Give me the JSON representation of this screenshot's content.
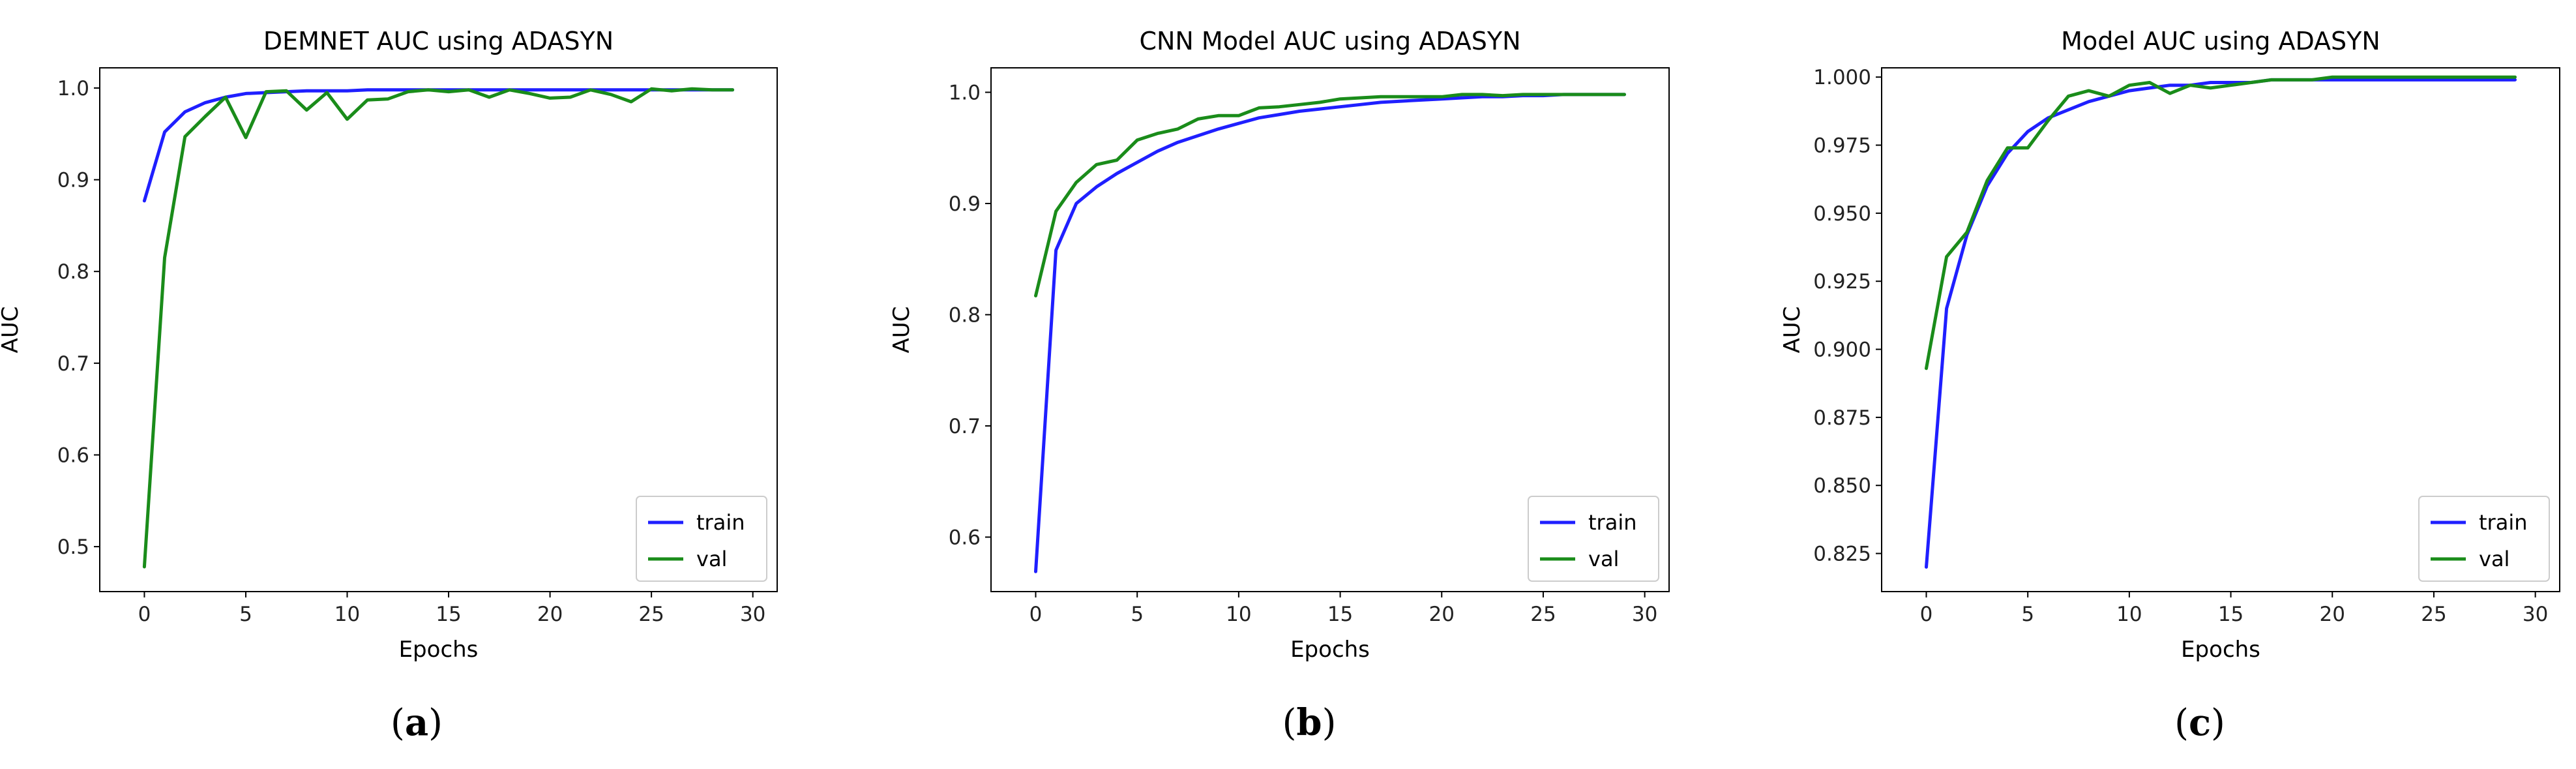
{
  "colors": {
    "train": "#1f1fff",
    "val": "#1a8c1a"
  },
  "chart_data": [
    {
      "type": "line",
      "title": "DEMNET AUC using ADASYN",
      "xlabel": "Epochs",
      "ylabel": "AUC",
      "xlim": [
        -2.2,
        31.2
      ],
      "ylim": [
        0.451,
        1.022
      ],
      "xticks": [
        0,
        5,
        10,
        15,
        20,
        25,
        30
      ],
      "yticks": [
        0.5,
        0.6,
        0.7,
        0.8,
        0.9,
        1.0
      ],
      "ytick_labels": [
        "0.5",
        "0.6",
        "0.7",
        "0.8",
        "0.9",
        "1.0"
      ],
      "legend": "lower-right",
      "caption_letter": "a",
      "x": [
        0,
        1,
        2,
        3,
        4,
        5,
        6,
        7,
        8,
        9,
        10,
        11,
        12,
        13,
        14,
        15,
        16,
        17,
        18,
        19,
        20,
        21,
        22,
        23,
        24,
        25,
        26,
        27,
        28,
        29
      ],
      "series": [
        {
          "name": "train",
          "values": [
            0.877,
            0.952,
            0.974,
            0.984,
            0.99,
            0.994,
            0.995,
            0.996,
            0.997,
            0.997,
            0.997,
            0.998,
            0.998,
            0.998,
            0.998,
            0.998,
            0.998,
            0.998,
            0.998,
            0.998,
            0.998,
            0.998,
            0.998,
            0.998,
            0.998,
            0.998,
            0.998,
            0.998,
            0.998,
            0.998
          ]
        },
        {
          "name": "val",
          "values": [
            0.478,
            0.815,
            0.947,
            0.969,
            0.99,
            0.946,
            0.996,
            0.997,
            0.976,
            0.995,
            0.966,
            0.987,
            0.988,
            0.996,
            0.998,
            0.996,
            0.998,
            0.99,
            0.998,
            0.994,
            0.989,
            0.99,
            0.998,
            0.993,
            0.985,
            0.999,
            0.997,
            0.999,
            0.998,
            0.998
          ]
        }
      ]
    },
    {
      "type": "line",
      "title": "CNN Model AUC using ADASYN",
      "xlabel": "Epochs",
      "ylabel": "AUC",
      "xlim": [
        -2.2,
        31.2
      ],
      "ylim": [
        0.551,
        1.022
      ],
      "xticks": [
        0,
        5,
        10,
        15,
        20,
        25,
        30
      ],
      "yticks": [
        0.6,
        0.7,
        0.8,
        0.9,
        1.0
      ],
      "ytick_labels": [
        "0.6",
        "0.7",
        "0.8",
        "0.9",
        "1.0"
      ],
      "legend": "lower-right",
      "caption_letter": "b",
      "x": [
        0,
        1,
        2,
        3,
        4,
        5,
        6,
        7,
        8,
        9,
        10,
        11,
        12,
        13,
        14,
        15,
        16,
        17,
        18,
        19,
        20,
        21,
        22,
        23,
        24,
        25,
        26,
        27,
        28,
        29
      ],
      "series": [
        {
          "name": "train",
          "values": [
            0.569,
            0.858,
            0.9,
            0.915,
            0.927,
            0.937,
            0.947,
            0.955,
            0.961,
            0.967,
            0.972,
            0.977,
            0.98,
            0.983,
            0.985,
            0.987,
            0.989,
            0.991,
            0.992,
            0.993,
            0.994,
            0.995,
            0.996,
            0.996,
            0.997,
            0.997,
            0.998,
            0.998,
            0.998,
            0.998
          ]
        },
        {
          "name": "val",
          "values": [
            0.817,
            0.893,
            0.919,
            0.935,
            0.939,
            0.957,
            0.963,
            0.967,
            0.976,
            0.979,
            0.979,
            0.986,
            0.987,
            0.989,
            0.991,
            0.994,
            0.995,
            0.996,
            0.996,
            0.996,
            0.996,
            0.998,
            0.998,
            0.997,
            0.998,
            0.998,
            0.998,
            0.998,
            0.998,
            0.998
          ]
        }
      ]
    },
    {
      "type": "line",
      "title": "Model AUC using ADASYN",
      "xlabel": "Epochs",
      "ylabel": "AUC",
      "xlim": [
        -2.2,
        31.2
      ],
      "ylim": [
        0.811,
        1.0034
      ],
      "xticks": [
        0,
        5,
        10,
        15,
        20,
        25,
        30
      ],
      "yticks": [
        0.825,
        0.85,
        0.875,
        0.9,
        0.925,
        0.95,
        0.975,
        1.0
      ],
      "ytick_labels": [
        "0.825",
        "0.850",
        "0.875",
        "0.900",
        "0.925",
        "0.950",
        "0.975",
        "1.000"
      ],
      "legend": "lower-right",
      "caption_letter": "c",
      "x": [
        0,
        1,
        2,
        3,
        4,
        5,
        6,
        7,
        8,
        9,
        10,
        11,
        12,
        13,
        14,
        15,
        16,
        17,
        18,
        19,
        20,
        21,
        22,
        23,
        24,
        25,
        26,
        27,
        28,
        29
      ],
      "series": [
        {
          "name": "train",
          "values": [
            0.82,
            0.915,
            0.942,
            0.96,
            0.972,
            0.98,
            0.985,
            0.988,
            0.991,
            0.993,
            0.995,
            0.996,
            0.997,
            0.997,
            0.998,
            0.998,
            0.998,
            0.999,
            0.999,
            0.999,
            0.999,
            0.999,
            0.999,
            0.999,
            0.999,
            0.999,
            0.999,
            0.999,
            0.999,
            0.999
          ]
        },
        {
          "name": "val",
          "values": [
            0.893,
            0.934,
            0.943,
            0.962,
            0.974,
            0.974,
            0.984,
            0.993,
            0.995,
            0.993,
            0.997,
            0.998,
            0.994,
            0.997,
            0.996,
            0.997,
            0.998,
            0.999,
            0.999,
            0.999,
            1.0,
            1.0,
            1.0,
            1.0,
            1.0,
            1.0,
            1.0,
            1.0,
            1.0,
            1.0
          ]
        }
      ]
    }
  ]
}
